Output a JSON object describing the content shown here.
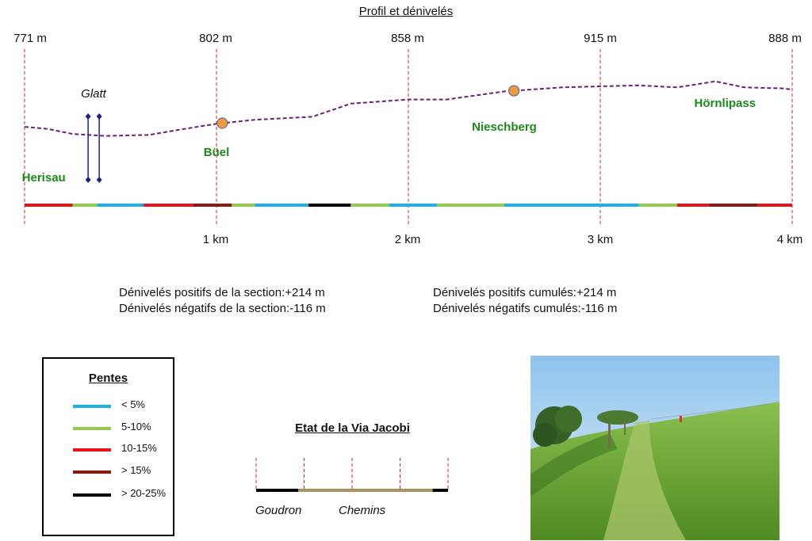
{
  "chart_data": {
    "type": "line",
    "title": "Profil et dénivelés",
    "elevation_labels": [
      "771 m",
      "802 m",
      "858 m",
      "915 m",
      "888 m"
    ],
    "distance_labels": [
      "1 km",
      "2 km",
      "3 km",
      "4 km"
    ],
    "x_km": [
      0,
      0.12,
      0.25,
      0.42,
      0.65,
      0.8,
      1.0,
      1.2,
      1.5,
      1.7,
      2.0,
      2.2,
      2.5,
      2.8,
      3.0,
      3.2,
      3.4,
      3.6,
      3.75,
      3.95,
      4.0
    ],
    "y_m": [
      799,
      797,
      792,
      790,
      791,
      796,
      802,
      806,
      809,
      822,
      826,
      826,
      834,
      838,
      839,
      840,
      838,
      844,
      838,
      837,
      836
    ],
    "xlim": [
      0,
      4
    ],
    "places": [
      {
        "name": "Herisau",
        "km": 0.1
      },
      {
        "name": "Büel",
        "km": 1.0
      },
      {
        "name": "Nieschberg",
        "km": 2.5
      },
      {
        "name": "Hörnlipass",
        "km": 3.65
      }
    ],
    "waypoints_km": [
      1.03,
      2.55
    ],
    "marker": {
      "name": "Glatt",
      "km": 0.36
    },
    "slope_segments": [
      {
        "from": 0.0,
        "to": 0.25,
        "class": "10-15%"
      },
      {
        "from": 0.25,
        "to": 0.38,
        "class": "5-10%"
      },
      {
        "from": 0.38,
        "to": 0.62,
        "class": "< 5%"
      },
      {
        "from": 0.62,
        "to": 0.88,
        "class": "10-15%"
      },
      {
        "from": 0.88,
        "to": 1.08,
        "class": "> 15%"
      },
      {
        "from": 1.08,
        "to": 1.2,
        "class": "5-10%"
      },
      {
        "from": 1.2,
        "to": 1.48,
        "class": "< 5%"
      },
      {
        "from": 1.48,
        "to": 1.7,
        "class": "> 20-25%"
      },
      {
        "from": 1.7,
        "to": 1.9,
        "class": "5-10%"
      },
      {
        "from": 1.9,
        "to": 2.15,
        "class": "< 5%"
      },
      {
        "from": 2.15,
        "to": 2.5,
        "class": "5-10%"
      },
      {
        "from": 2.5,
        "to": 3.2,
        "class": "< 5%"
      },
      {
        "from": 3.2,
        "to": 3.4,
        "class": "5-10%"
      },
      {
        "from": 3.4,
        "to": 3.57,
        "class": "10-15%"
      },
      {
        "from": 3.57,
        "to": 3.82,
        "class": "> 15%"
      },
      {
        "from": 3.82,
        "to": 4.0,
        "class": "10-15%"
      }
    ]
  },
  "stats": {
    "section_pos": "Dénivelés positifs de la section:+214 m",
    "section_neg": "Dénivelés négatifs de la section:-116 m",
    "cumul_pos": "Dénivelés positifs cumulés:+214 m",
    "cumul_neg": "Dénivelés négatifs cumulés:-116 m"
  },
  "legend": {
    "title": "Pentes",
    "items": [
      {
        "label": "< 5%",
        "color": "#1ab2e8"
      },
      {
        "label": "5-10%",
        "color": "#8fce4a"
      },
      {
        "label": "10-15%",
        "color": "#e8141c"
      },
      {
        "label": "> 15%",
        "color": "#8b1a0e"
      },
      {
        "label": "> 20-25%",
        "color": "#000000"
      }
    ]
  },
  "etat": {
    "title": "Etat de la Via Jacobi",
    "labels": [
      "Goudron",
      "Chemins"
    ],
    "segments": [
      {
        "from": 0.0,
        "to": 0.22,
        "type": "Goudron",
        "color": "#000000"
      },
      {
        "from": 0.22,
        "to": 0.92,
        "type": "Chemins",
        "color": "#a39560"
      },
      {
        "from": 0.92,
        "to": 1.0,
        "type": "Goudron",
        "color": "#000000"
      }
    ]
  },
  "colors": {
    "profile": "#6a1f7c",
    "gridline": "#e02020",
    "place": "#1b8a1b",
    "glatt": "#1a237e",
    "waypoint": "#f29a3a"
  }
}
